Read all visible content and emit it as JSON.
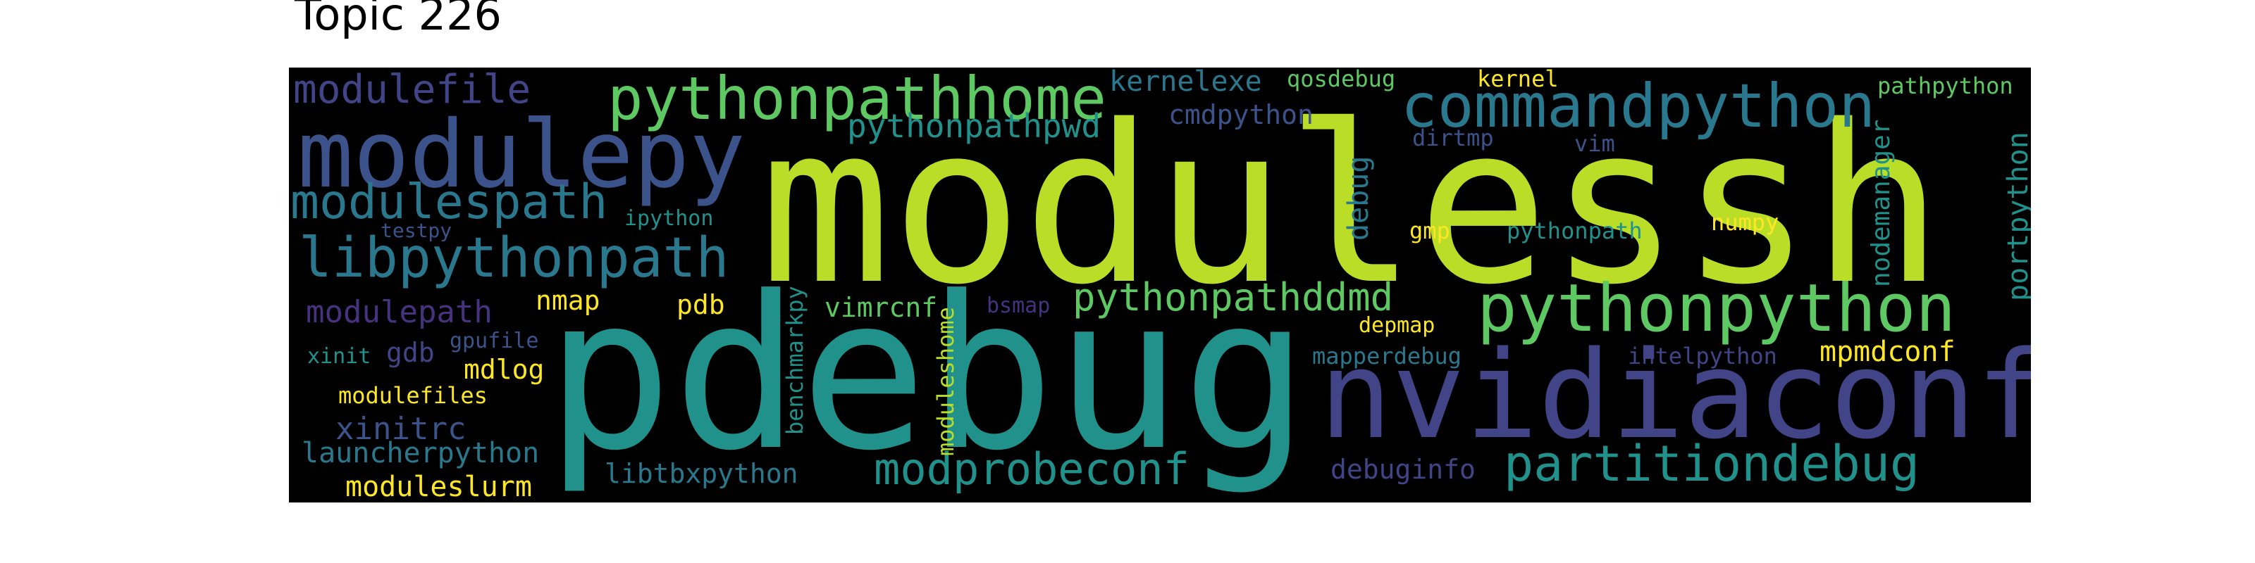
{
  "title": "Topic 226",
  "palette": {
    "lime": "#bade28",
    "yellow": "#fde725",
    "green": "#5ec962",
    "teal": "#21918c",
    "cyan": "#2a788e",
    "blue": "#3b528b",
    "indigo": "#414487",
    "purple": "#46327e",
    "darkpurple": "#482575",
    "background": "#000000"
  },
  "words": [
    {
      "text": "modulessh",
      "color": "#bade28"
    },
    {
      "text": "pdebug",
      "color": "#21918c"
    },
    {
      "text": "nvidiaconf",
      "color": "#414487"
    },
    {
      "text": "modulepy",
      "color": "#3b528b"
    },
    {
      "text": "pythonpython",
      "color": "#5ec962"
    },
    {
      "text": "commandpython",
      "color": "#2a788e"
    },
    {
      "text": "pythonpathhome",
      "color": "#5ec962"
    },
    {
      "text": "libpythonpath",
      "color": "#2a788e"
    },
    {
      "text": "partitiondebug",
      "color": "#21918c"
    },
    {
      "text": "modulespath",
      "color": "#2a788e"
    },
    {
      "text": "modprobeconf",
      "color": "#21918c"
    },
    {
      "text": "pythonpathddmd",
      "color": "#5ec962"
    },
    {
      "text": "modulefile",
      "color": "#414487"
    },
    {
      "text": "pythonpathpwd",
      "color": "#21918c"
    },
    {
      "text": "modulepath",
      "color": "#46327e"
    },
    {
      "text": "xinitrc",
      "color": "#3b528b"
    },
    {
      "text": "launcherpython",
      "color": "#2a788e"
    },
    {
      "text": "moduleslurm",
      "color": "#fde725"
    },
    {
      "text": "libtbxpython",
      "color": "#2a788e"
    },
    {
      "text": "debuginfo",
      "color": "#414487"
    },
    {
      "text": "mpmdconf",
      "color": "#fde725"
    },
    {
      "text": "kernelexe",
      "color": "#2a788e"
    },
    {
      "text": "cmdpython",
      "color": "#3b528b"
    },
    {
      "text": "vimrcnf",
      "color": "#5ec962"
    },
    {
      "text": "portpython",
      "color": "#21918c"
    },
    {
      "text": "nodemanager",
      "color": "#21918c"
    },
    {
      "text": "debug",
      "color": "#2a788e"
    },
    {
      "text": "mdlog",
      "color": "#fde725"
    },
    {
      "text": "nmap",
      "color": "#fde725"
    },
    {
      "text": "pdb",
      "color": "#fde725"
    },
    {
      "text": "gdb",
      "color": "#414487"
    },
    {
      "text": "mapperdebug",
      "color": "#2a788e"
    },
    {
      "text": "intelpython",
      "color": "#414487"
    },
    {
      "text": "numpy",
      "color": "#fde725"
    },
    {
      "text": "modulefiles",
      "color": "#fde725"
    },
    {
      "text": "benchmarkpy",
      "color": "#21918c"
    },
    {
      "text": "moduleshome",
      "color": "#bade28"
    },
    {
      "text": "qosdebug",
      "color": "#5ec962"
    },
    {
      "text": "kernel",
      "color": "#fde725"
    },
    {
      "text": "pathpython",
      "color": "#5ec962"
    },
    {
      "text": "dirtmp",
      "color": "#3b528b"
    },
    {
      "text": "vim",
      "color": "#3b528b"
    },
    {
      "text": "pythonpath",
      "color": "#21918c"
    },
    {
      "text": "gmp",
      "color": "#fde725"
    },
    {
      "text": "depmap",
      "color": "#fde725"
    },
    {
      "text": "bsmap",
      "color": "#46327e"
    },
    {
      "text": "ipython",
      "color": "#21918c"
    },
    {
      "text": "testpy",
      "color": "#3b528b"
    },
    {
      "text": "xinit",
      "color": "#21918c"
    },
    {
      "text": "gpufile",
      "color": "#3b528b"
    }
  ]
}
